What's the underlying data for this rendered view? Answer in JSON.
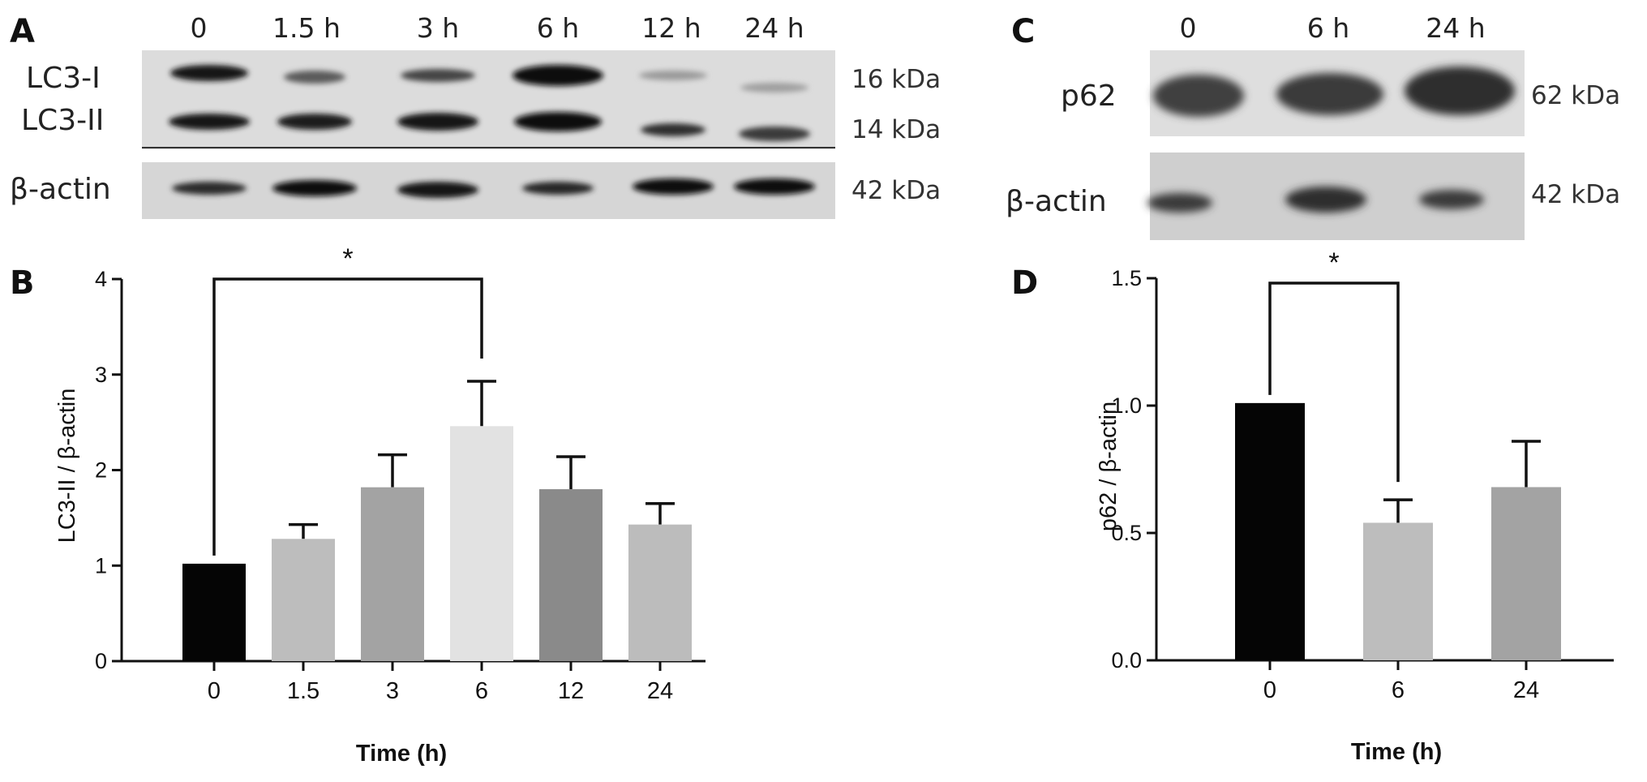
{
  "panels": {
    "a": "A",
    "b": "B",
    "c": "C",
    "d": "D"
  },
  "blot_a": {
    "lanes": [
      "0",
      "1.5 h",
      "3 h",
      "6 h",
      "12 h",
      "24 h"
    ],
    "rows": [
      "LC3-I",
      "LC3-II",
      "β-actin"
    ],
    "weights": [
      "16 kDa",
      "14 kDa",
      "42 kDa"
    ]
  },
  "blot_c": {
    "lanes": [
      "0",
      "6 h",
      "24 h"
    ],
    "rows": [
      "p62",
      "β-actin"
    ],
    "weights": [
      "62 kDa",
      "42 kDa"
    ]
  },
  "chart_data": [
    {
      "type": "bar",
      "panel": "B",
      "categories": [
        "0",
        "1.5",
        "3",
        "6",
        "12",
        "24"
      ],
      "values": [
        1.02,
        1.28,
        1.82,
        2.46,
        1.8,
        1.43
      ],
      "errors": [
        0,
        0.15,
        0.34,
        0.47,
        0.34,
        0.22
      ],
      "colors": [
        "#050505",
        "#bdbdbd",
        "#a3a3a3",
        "#e2e2e2",
        "#8a8a8a",
        "#bcbcbc"
      ],
      "xlabel": "Time (h)",
      "ylabel": "LC3-II / β-actin",
      "ylim": [
        0,
        4
      ],
      "yticks": [
        "0",
        "1",
        "2",
        "3",
        "4"
      ],
      "significance": {
        "from": "0",
        "to": "6",
        "label": "*"
      }
    },
    {
      "type": "bar",
      "panel": "D",
      "categories": [
        "0",
        "6",
        "24"
      ],
      "values": [
        1.01,
        0.54,
        0.68
      ],
      "errors": [
        0,
        0.09,
        0.18
      ],
      "colors": [
        "#050505",
        "#bdbdbd",
        "#a3a3a3"
      ],
      "xlabel": "Time (h)",
      "ylabel": "p62 / β-actin",
      "ylim": [
        0,
        1.5
      ],
      "yticks": [
        "0.0",
        "0.5",
        "1.0",
        "1.5"
      ],
      "significance": {
        "from": "0",
        "to": "6",
        "label": "*"
      }
    }
  ]
}
